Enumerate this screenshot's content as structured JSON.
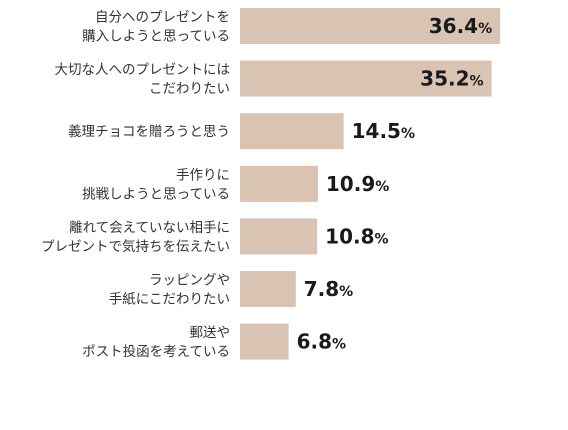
{
  "chart_data": {
    "type": "bar",
    "orientation": "horizontal",
    "categories": [
      [
        "自分へのプレゼントを",
        "購入しようと思っている"
      ],
      [
        "大切な人へのプレゼントには",
        "こだわりたい"
      ],
      [
        "義理チョコを贈ろうと思う"
      ],
      [
        "手作りに",
        "挑戦しようと思っている"
      ],
      [
        "離れて会えていない相手に",
        "プレゼントで気持ちを伝えたい"
      ],
      [
        "ラッピングや",
        "手紙にこだわりたい"
      ],
      [
        "郵送や",
        "ポスト投函を考えている"
      ]
    ],
    "values": [
      36.4,
      35.2,
      14.5,
      10.9,
      10.8,
      7.8,
      6.8
    ],
    "value_labels": [
      "36.4",
      "35.2",
      "14.5",
      "10.9",
      "10.8",
      "7.8",
      "6.8"
    ],
    "unit": "%",
    "xlim": [
      0,
      37.5
    ],
    "bar_color": "#d9c3b3",
    "grid": false,
    "title": "",
    "xlabel": "",
    "ylabel": ""
  }
}
